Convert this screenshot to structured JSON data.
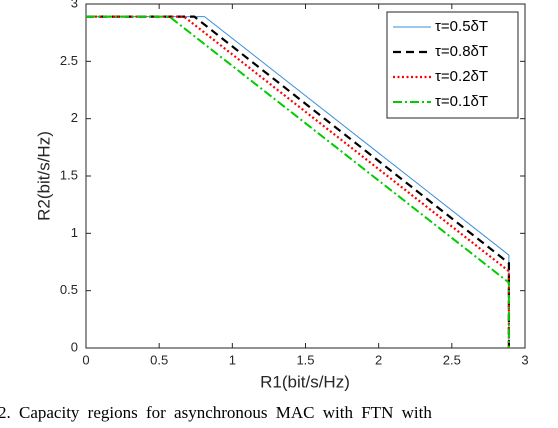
{
  "chart_data": {
    "type": "line",
    "xlabel": "R1(bit/s/Hz)",
    "ylabel": "R2(bit/s/Hz)",
    "caption": "2.  Capacity regions for asynchronous MAC with FTN with",
    "xlim": [
      0,
      3
    ],
    "ylim": [
      0,
      3
    ],
    "xticks": [
      0,
      0.5,
      1,
      1.5,
      2,
      2.5,
      3
    ],
    "yticks": [
      0,
      0.5,
      1,
      1.5,
      2,
      2.5,
      3
    ],
    "legend": "northeast",
    "series": [
      {
        "name": "τ=0.5δT",
        "color": "#3a8fd8",
        "linestyle": "solid",
        "x": [
          0,
          0.81,
          2.89,
          2.89
        ],
        "values": [
          2.89,
          2.89,
          0.81,
          0
        ]
      },
      {
        "name": "τ=0.8δT",
        "color": "#000000",
        "linestyle": "dashed",
        "x": [
          0,
          0.74,
          2.89,
          2.89
        ],
        "values": [
          2.89,
          2.89,
          0.74,
          0
        ]
      },
      {
        "name": "τ=0.2δT",
        "color": "#ff0000",
        "linestyle": "dotted",
        "x": [
          0,
          0.67,
          2.89,
          2.89
        ],
        "values": [
          2.89,
          2.89,
          0.67,
          0
        ]
      },
      {
        "name": "τ=0.1δT",
        "color": "#00cc00",
        "linestyle": "dashdot",
        "x": [
          0,
          0.57,
          2.89,
          2.89
        ],
        "values": [
          2.89,
          2.89,
          0.57,
          0
        ]
      }
    ]
  }
}
